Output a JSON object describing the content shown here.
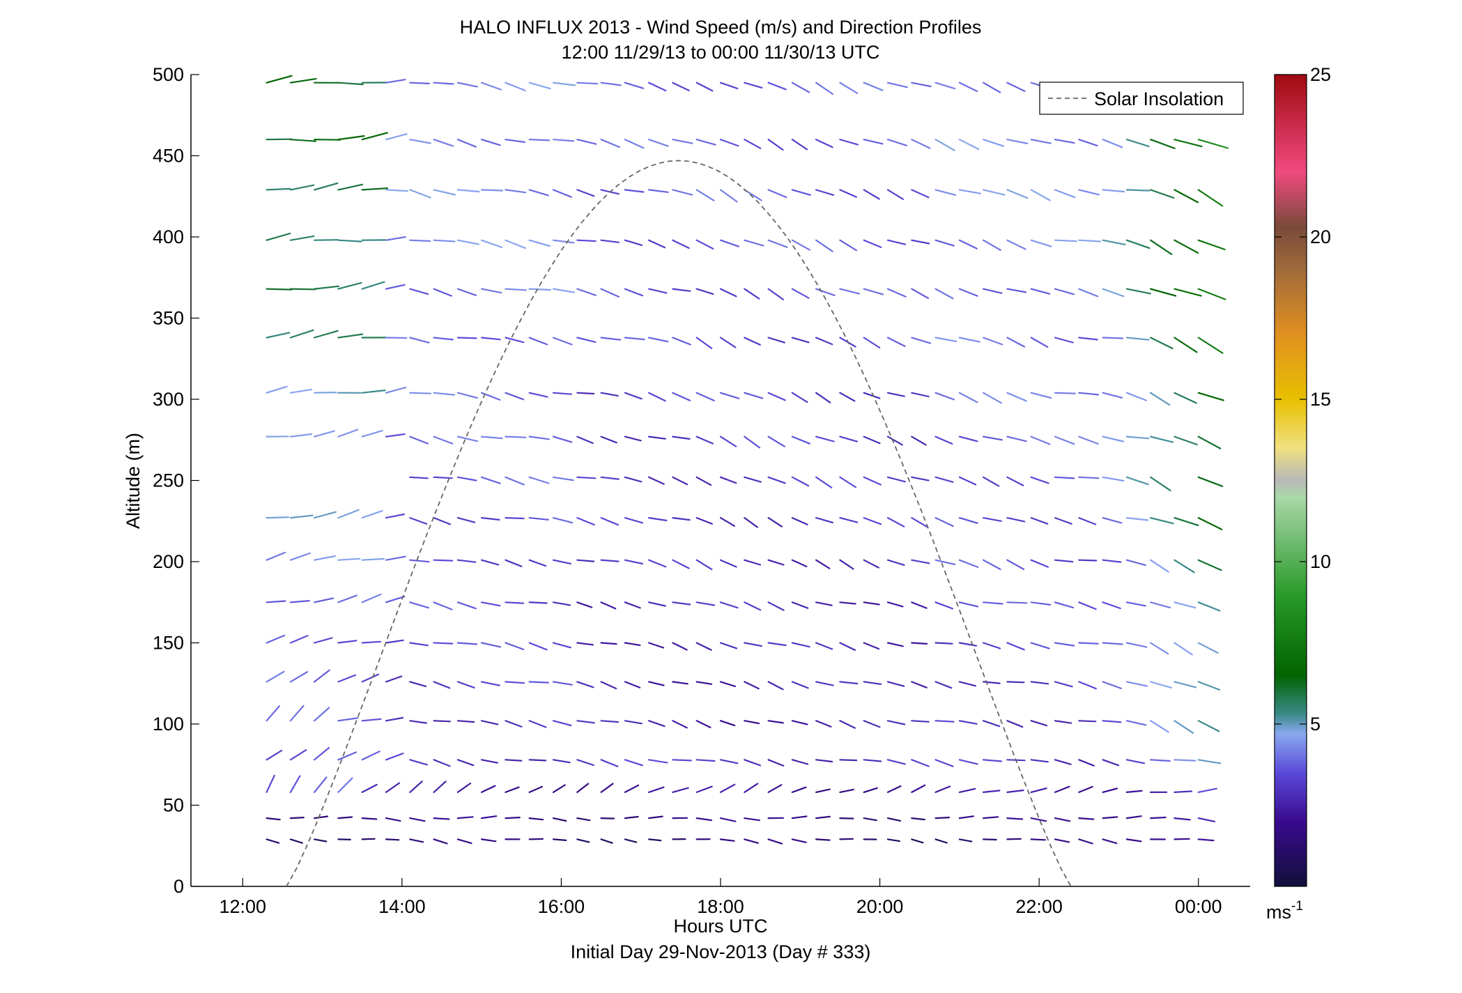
{
  "figure": {
    "title_line1": "HALO INFLUX 2013 - Wind Speed (m/s) and Direction Profiles",
    "title_line2": "12:00 11/29/13 to 00:00 11/30/13  UTC",
    "xlabel": "Hours UTC",
    "xlabel2": "Initial Day 29-Nov-2013 (Day # 333)",
    "ylabel": "Altitude (m)"
  },
  "chart_data": {
    "type": "wind-barb-profile",
    "title": "HALO INFLUX 2013 - Wind Speed (m/s) and Direction Profiles",
    "subtitle": "12:00 11/29/13 to 00:00 11/30/13  UTC",
    "xlabel": "Hours UTC",
    "ylabel": "Altitude (m)",
    "xlim": [
      11.35,
      24.65
    ],
    "ylim": [
      0,
      500
    ],
    "x_ticks": [
      12,
      14,
      16,
      18,
      20,
      22,
      24
    ],
    "x_tick_labels": [
      "12:00",
      "14:00",
      "16:00",
      "18:00",
      "20:00",
      "22:00",
      "00:00"
    ],
    "y_ticks": [
      0,
      50,
      100,
      150,
      200,
      250,
      300,
      350,
      400,
      450,
      500
    ],
    "y_tick_labels": [
      "0",
      "50",
      "100",
      "150",
      "200",
      "250",
      "300",
      "350",
      "400",
      "450",
      "500"
    ],
    "grid": false,
    "legend": {
      "placement": "top-right",
      "entries": [
        "Solar Insolation"
      ]
    },
    "colorbar": {
      "range": [
        0,
        25
      ],
      "ticks": [
        5,
        10,
        15,
        20,
        25
      ],
      "tick_labels": [
        "5",
        "10",
        "15",
        "20",
        "25"
      ],
      "unit_label": "ms",
      "unit_exponent": "-1"
    },
    "times": [
      12.3,
      12.6,
      12.9,
      13.2,
      13.5,
      13.8,
      14.1,
      14.4,
      14.7,
      15.0,
      15.3,
      15.6,
      15.9,
      16.2,
      16.5,
      16.8,
      17.1,
      17.4,
      17.7,
      18.0,
      18.3,
      18.6,
      18.9,
      19.2,
      19.5,
      19.8,
      20.1,
      20.4,
      20.7,
      21.0,
      21.3,
      21.6,
      21.9,
      22.2,
      22.5,
      22.8,
      23.1,
      23.4,
      23.7,
      24.0
    ],
    "altitudes": [
      29,
      42,
      58,
      78,
      102,
      126,
      150,
      175,
      201,
      227,
      252,
      277,
      304,
      338,
      368,
      398,
      429,
      460,
      495
    ],
    "missing_altitude_252_times_before": 13.95,
    "insolation_curve": {
      "name": "Solar Insolation",
      "start_hour": 12.55,
      "end_hour": 22.4,
      "peak_hour": 17.5,
      "peak_altitude": 447,
      "color": "#666666"
    },
    "speed_colormap": [
      {
        "v": 0,
        "c": "#10103a"
      },
      {
        "v": 2,
        "c": "#3a0a90"
      },
      {
        "v": 3.5,
        "c": "#5a4ad8"
      },
      {
        "v": 4.7,
        "c": "#8aa8f0"
      },
      {
        "v": 5.3,
        "c": "#3a8a8a"
      },
      {
        "v": 6.5,
        "c": "#006400"
      },
      {
        "v": 9,
        "c": "#2a9a2a"
      },
      {
        "v": 12,
        "c": "#aad8aa"
      },
      {
        "v": 12.5,
        "c": "#b8b8b8"
      },
      {
        "v": 13.5,
        "c": "#f0e080"
      },
      {
        "v": 15,
        "c": "#e8c000"
      },
      {
        "v": 17,
        "c": "#e09020"
      },
      {
        "v": 19,
        "c": "#a06a3a"
      },
      {
        "v": 20.3,
        "c": "#7a4a3a"
      },
      {
        "v": 22,
        "c": "#f04a80"
      },
      {
        "v": 25,
        "c": "#a00a10"
      }
    ]
  }
}
